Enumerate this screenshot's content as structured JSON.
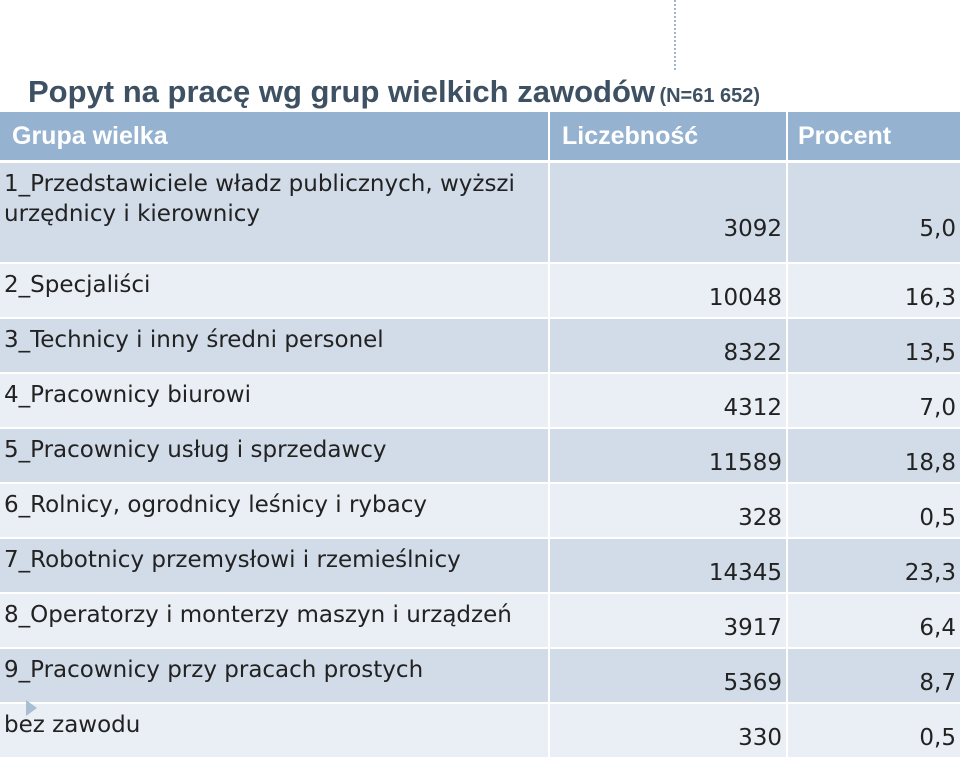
{
  "title": {
    "main": "Popyt na pracę wg grup wielkich zawodów",
    "n": "(N=61 652)"
  },
  "table": {
    "headers": [
      "Grupa wielka",
      "Liczebność",
      "Procent"
    ],
    "rows": [
      {
        "name": "1_Przedstawiciele władz publicznych, wyższi urzędnicy i kierownicy",
        "count": "3092",
        "percent": "5,0"
      },
      {
        "name": "2_Specjaliści",
        "count": "10048",
        "percent": "16,3"
      },
      {
        "name": "3_Technicy i inny średni personel",
        "count": "8322",
        "percent": "13,5"
      },
      {
        "name": "4_Pracownicy biurowi",
        "count": "4312",
        "percent": "7,0"
      },
      {
        "name": "5_Pracownicy usług i sprzedawcy",
        "count": "11589",
        "percent": "18,8"
      },
      {
        "name": "6_Rolnicy, ogrodnicy leśnicy i rybacy",
        "count": "328",
        "percent": "0,5"
      },
      {
        "name": "7_Robotnicy przemysłowi i rzemieślnicy",
        "count": "14345",
        "percent": "23,3"
      },
      {
        "name": "8_Operatorzy i monterzy maszyn i urządzeń",
        "count": "3917",
        "percent": "6,4"
      },
      {
        "name": "9_Pracownicy przy pracach prostych",
        "count": "5369",
        "percent": "8,7"
      },
      {
        "name": "bez zawodu",
        "count": "330",
        "percent": "0,5"
      }
    ]
  },
  "colors": {
    "title": "#3e5163",
    "header_bg": "#95b3d0",
    "row_dark": "#d2dce8",
    "row_light": "#eaeff5"
  }
}
